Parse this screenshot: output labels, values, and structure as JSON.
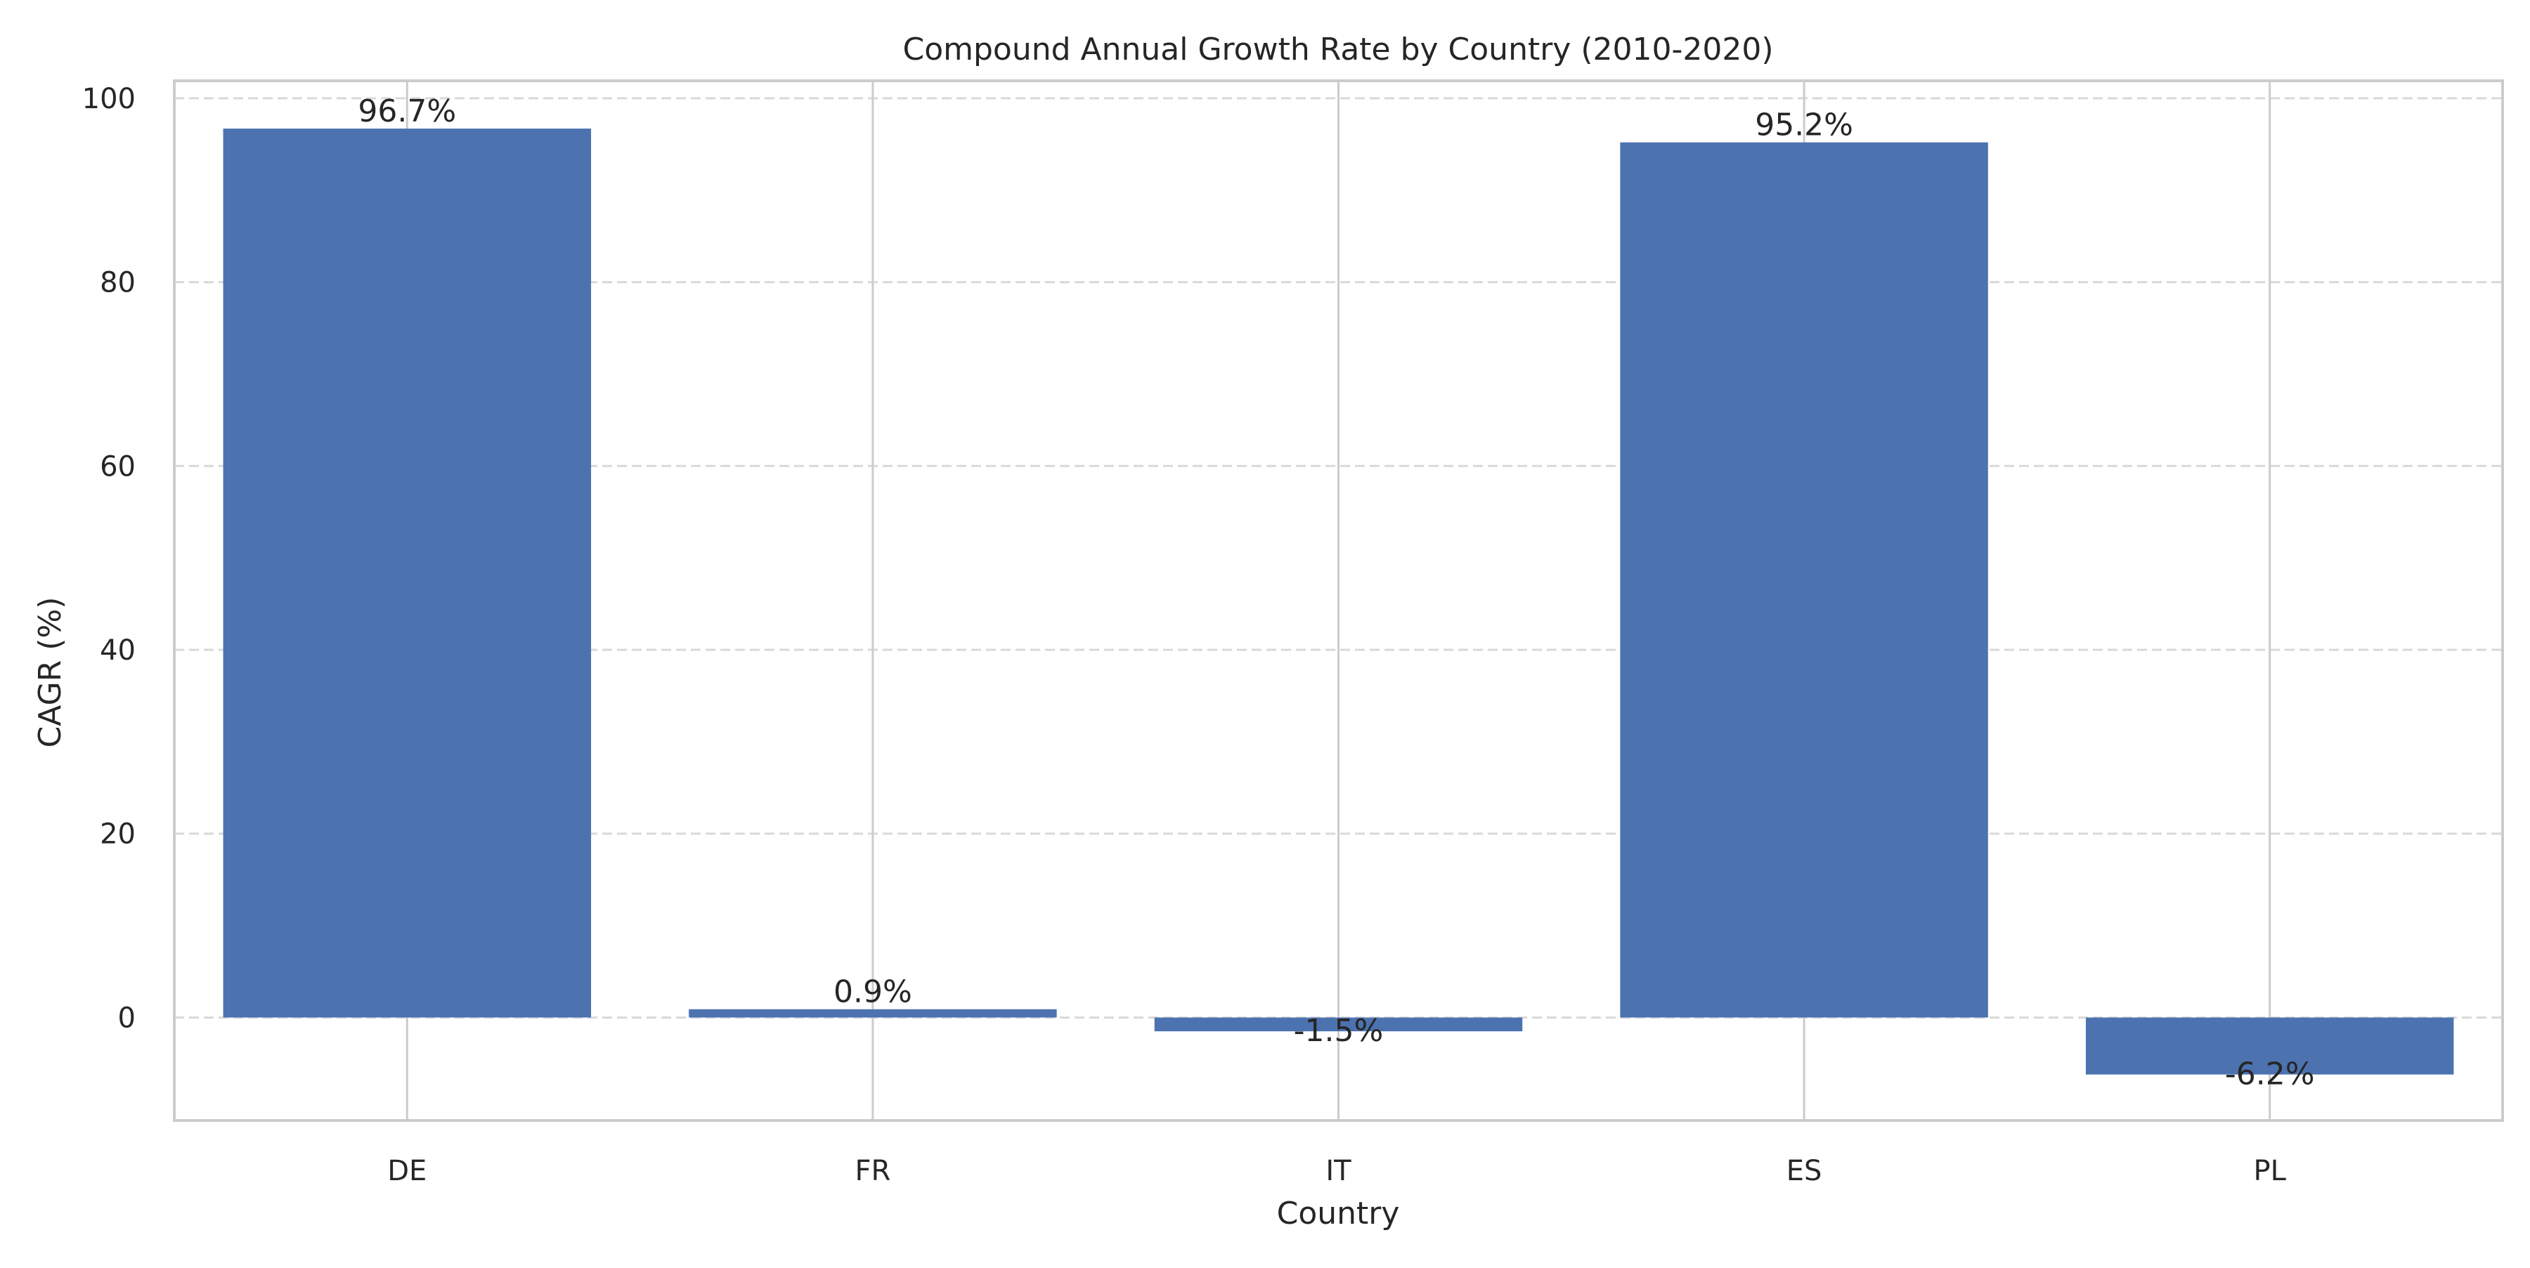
{
  "chart_data": {
    "type": "bar",
    "title": "Compound Annual Growth Rate by Country (2010-2020)",
    "xlabel": "Country",
    "ylabel": "CAGR (%)",
    "categories": [
      "DE",
      "FR",
      "IT",
      "ES",
      "PL"
    ],
    "values": [
      96.7,
      0.9,
      -1.5,
      95.2,
      -6.2
    ],
    "data_labels": [
      "96.7%",
      "0.9%",
      "-1.5%",
      "95.2%",
      "-6.2%"
    ],
    "ylim": [
      -11.2,
      101.9
    ],
    "yticks": [
      0,
      20,
      40,
      60,
      80,
      100
    ],
    "ytick_labels": [
      "0",
      "20",
      "40",
      "60",
      "80",
      "100"
    ],
    "bar_color": "#4c72b0",
    "grid": true,
    "legend": false
  }
}
